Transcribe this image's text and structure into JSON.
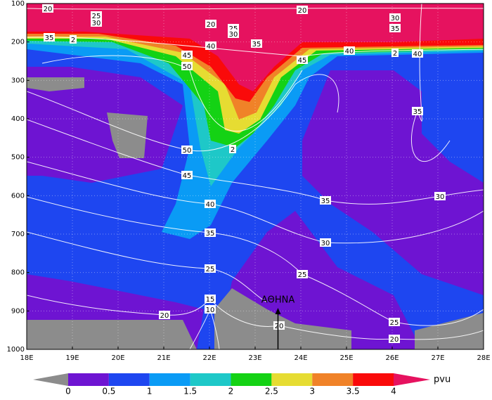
{
  "chart_data": {
    "type": "contour",
    "xlim": [
      18,
      28
    ],
    "xticks": [
      {
        "value": 18,
        "label": "18E"
      },
      {
        "value": 19,
        "label": "19E"
      },
      {
        "value": 20,
        "label": "20E"
      },
      {
        "value": 21,
        "label": "21E"
      },
      {
        "value": 22,
        "label": "22E"
      },
      {
        "value": 23,
        "label": "23E"
      },
      {
        "value": 24,
        "label": "24E"
      },
      {
        "value": 25,
        "label": "25E"
      },
      {
        "value": 26,
        "label": "26E"
      },
      {
        "value": 27,
        "label": "27E"
      },
      {
        "value": 28,
        "label": "28E"
      }
    ],
    "ylim": [
      1000,
      100
    ],
    "yticks": [
      100,
      200,
      300,
      400,
      500,
      600,
      700,
      800,
      900,
      1000
    ],
    "grid": true,
    "colorbar": {
      "levels": [
        0,
        0.5,
        1,
        1.5,
        2,
        2.5,
        3,
        3.5,
        4
      ],
      "colors": [
        "#8c8c8c",
        "#6e14d2",
        "#1e46f0",
        "#0a9bf5",
        "#1ec8c8",
        "#14d214",
        "#e6dc32",
        "#f08228",
        "#fa0a0a",
        "#e6125f"
      ],
      "label": "pvu"
    },
    "contour_labels": [
      20,
      25,
      30,
      20,
      30,
      35,
      20,
      25,
      30,
      35,
      2,
      40,
      35,
      40,
      2,
      40,
      45,
      45,
      50,
      35,
      50,
      2,
      45,
      35,
      30,
      40,
      35,
      30,
      25,
      25,
      15,
      10,
      20,
      20,
      25,
      20
    ],
    "annotation": {
      "text": "ΑΘΗΝΑ",
      "x": 23.5
    }
  }
}
